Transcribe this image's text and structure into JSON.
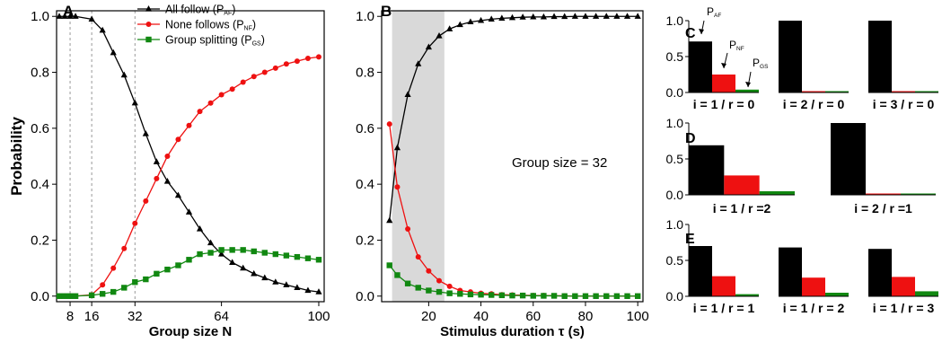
{
  "colors": {
    "all_follow": "#000000",
    "none_follows": "#ee1111",
    "group_splitting": "#118811",
    "shade": "#d9d9d9"
  },
  "chart_data": [
    {
      "panel": "A",
      "type": "line",
      "xlabel": "Group size N",
      "ylabel": "Probability",
      "xlim": [
        3,
        102
      ],
      "ylim": [
        -0.02,
        1.02
      ],
      "xticks": [
        8,
        16,
        32,
        64,
        100
      ],
      "yticks": [
        "0.0",
        "0.2",
        "0.4",
        "0.6",
        "0.8",
        "1.0"
      ],
      "vlines": [
        8,
        16,
        32
      ],
      "legend": [
        "All follow (P",
        "None follows (P",
        "Group splitting (P"
      ],
      "legend_sub": [
        "AF",
        "NF",
        "GS"
      ],
      "legend_placement": "top-right",
      "series": [
        {
          "key": "all_follow",
          "marker": "triangle",
          "name": "All follow (PAF)",
          "x": [
            4,
            6,
            8,
            10,
            16,
            20,
            24,
            28,
            32,
            36,
            40,
            44,
            48,
            52,
            56,
            60,
            64,
            68,
            72,
            76,
            80,
            84,
            88,
            92,
            96,
            100
          ],
          "y": [
            1.0,
            1.0,
            1.0,
            1.0,
            0.99,
            0.95,
            0.87,
            0.79,
            0.69,
            0.58,
            0.48,
            0.41,
            0.36,
            0.3,
            0.24,
            0.19,
            0.15,
            0.12,
            0.1,
            0.08,
            0.065,
            0.05,
            0.04,
            0.03,
            0.02,
            0.015
          ]
        },
        {
          "key": "none_follows",
          "marker": "circle",
          "name": "None follows (PNF)",
          "x": [
            4,
            6,
            8,
            10,
            16,
            20,
            24,
            28,
            32,
            36,
            40,
            44,
            48,
            52,
            56,
            60,
            64,
            68,
            72,
            76,
            80,
            84,
            88,
            92,
            96,
            100
          ],
          "y": [
            0.0,
            0.0,
            0.0,
            0.0,
            0.005,
            0.04,
            0.1,
            0.17,
            0.26,
            0.34,
            0.42,
            0.5,
            0.56,
            0.61,
            0.66,
            0.69,
            0.72,
            0.74,
            0.765,
            0.785,
            0.8,
            0.815,
            0.83,
            0.84,
            0.85,
            0.855
          ]
        },
        {
          "key": "group_splitting",
          "marker": "square",
          "name": "Group splitting (PGS)",
          "x": [
            4,
            6,
            8,
            10,
            16,
            20,
            24,
            28,
            32,
            36,
            40,
            44,
            48,
            52,
            56,
            60,
            64,
            68,
            72,
            76,
            80,
            84,
            88,
            92,
            96,
            100
          ],
          "y": [
            0.0,
            0.0,
            0.0,
            0.0,
            0.003,
            0.008,
            0.015,
            0.03,
            0.05,
            0.06,
            0.08,
            0.095,
            0.11,
            0.13,
            0.15,
            0.155,
            0.165,
            0.165,
            0.165,
            0.16,
            0.155,
            0.15,
            0.145,
            0.14,
            0.135,
            0.13
          ]
        }
      ]
    },
    {
      "panel": "B",
      "type": "line",
      "xlabel": "Stimulus duration τ (s)",
      "xlim": [
        2,
        102
      ],
      "ylim": [
        -0.02,
        1.02
      ],
      "xticks": [
        20,
        40,
        60,
        80,
        100
      ],
      "yticks": [
        "0.0",
        "0.2",
        "0.4",
        "0.6",
        "0.8",
        "1.0"
      ],
      "shaded_x": [
        6,
        26
      ],
      "annotation": "Group size = 32",
      "series": [
        {
          "key": "all_follow",
          "marker": "triangle",
          "x": [
            5,
            8,
            12,
            16,
            20,
            24,
            28,
            32,
            36,
            40,
            44,
            48,
            52,
            56,
            60,
            64,
            68,
            72,
            76,
            80,
            84,
            88,
            92,
            96,
            100
          ],
          "y": [
            0.27,
            0.53,
            0.72,
            0.83,
            0.89,
            0.93,
            0.955,
            0.97,
            0.98,
            0.985,
            0.99,
            0.993,
            0.995,
            0.997,
            0.998,
            0.998,
            0.999,
            0.999,
            1.0,
            1.0,
            1.0,
            1.0,
            1.0,
            1.0,
            1.0
          ]
        },
        {
          "key": "none_follows",
          "marker": "circle",
          "x": [
            5,
            8,
            12,
            16,
            20,
            24,
            28,
            32,
            36,
            40,
            44,
            48,
            52,
            56,
            60,
            64,
            68,
            72,
            76,
            80,
            84,
            88,
            92,
            96,
            100
          ],
          "y": [
            0.615,
            0.39,
            0.24,
            0.14,
            0.09,
            0.055,
            0.035,
            0.02,
            0.015,
            0.01,
            0.008,
            0.005,
            0.004,
            0.003,
            0.002,
            0.002,
            0.001,
            0.001,
            0.0,
            0.0,
            0.0,
            0.0,
            0.0,
            0.0,
            0.0
          ]
        },
        {
          "key": "group_splitting",
          "marker": "square",
          "x": [
            5,
            8,
            12,
            16,
            20,
            24,
            28,
            32,
            36,
            40,
            44,
            48,
            52,
            56,
            60,
            64,
            68,
            72,
            76,
            80,
            84,
            88,
            92,
            96,
            100
          ],
          "y": [
            0.11,
            0.075,
            0.045,
            0.03,
            0.02,
            0.015,
            0.01,
            0.008,
            0.006,
            0.005,
            0.004,
            0.003,
            0.002,
            0.002,
            0.001,
            0.001,
            0.001,
            0.0,
            0.0,
            0.0,
            0.0,
            0.0,
            0.0,
            0.0,
            0.0
          ]
        }
      ]
    },
    {
      "panel": "C",
      "type": "bar",
      "yticks": [
        "0.0",
        "0.5",
        "1.0"
      ],
      "ylim": [
        0,
        1.0
      ],
      "bar_labels": [
        "P",
        "P",
        "P"
      ],
      "bar_label_subs": [
        "AF",
        "NF",
        "GS"
      ],
      "groups": [
        {
          "label": "i = 1 / r = 0",
          "values": [
            0.71,
            0.25,
            0.04
          ]
        },
        {
          "label": "i = 2 / r = 0",
          "values": [
            1.0,
            0.005,
            0.005
          ]
        },
        {
          "label": "i = 3 / r = 0",
          "values": [
            1.0,
            0.003,
            0.003
          ]
        }
      ]
    },
    {
      "panel": "D",
      "type": "bar",
      "yticks": [
        "0.0",
        "0.5",
        "1.0"
      ],
      "ylim": [
        0,
        1.0
      ],
      "groups": [
        {
          "label": "i = 1 / r =2",
          "values": [
            0.69,
            0.27,
            0.05
          ]
        },
        {
          "label": "i = 2 / r =1",
          "values": [
            1.0,
            0.005,
            0.005
          ]
        }
      ]
    },
    {
      "panel": "E",
      "type": "bar",
      "yticks": [
        "0.0",
        "0.5",
        "1.0"
      ],
      "ylim": [
        0,
        1.0
      ],
      "groups": [
        {
          "label": "i = 1 / r = 1",
          "values": [
            0.7,
            0.28,
            0.03
          ]
        },
        {
          "label": "i = 1 / r = 2",
          "values": [
            0.68,
            0.26,
            0.05
          ]
        },
        {
          "label": "i = 1 / r = 3",
          "values": [
            0.66,
            0.27,
            0.07
          ]
        }
      ]
    }
  ]
}
